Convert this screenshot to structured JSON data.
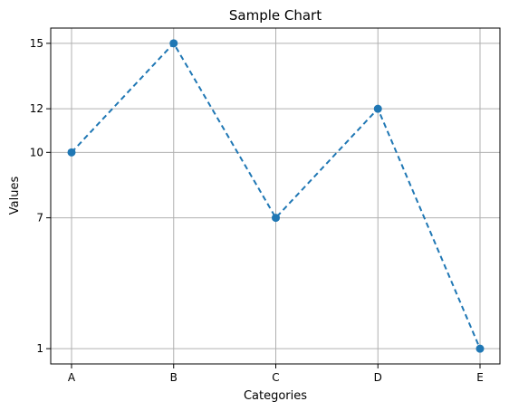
{
  "chart_data": {
    "type": "line",
    "title": "Sample Chart",
    "xlabel": "Categories",
    "ylabel": "Values",
    "categories": [
      "A",
      "B",
      "C",
      "D",
      "E"
    ],
    "series": [
      {
        "values": [
          10,
          15,
          7,
          12,
          1
        ],
        "color": "#1f77b4",
        "line_style": "dashed",
        "marker": "circle"
      }
    ],
    "yticks": [
      1,
      7,
      10,
      12,
      15
    ],
    "ylim": [
      0.3,
      15.7
    ],
    "grid": true
  }
}
